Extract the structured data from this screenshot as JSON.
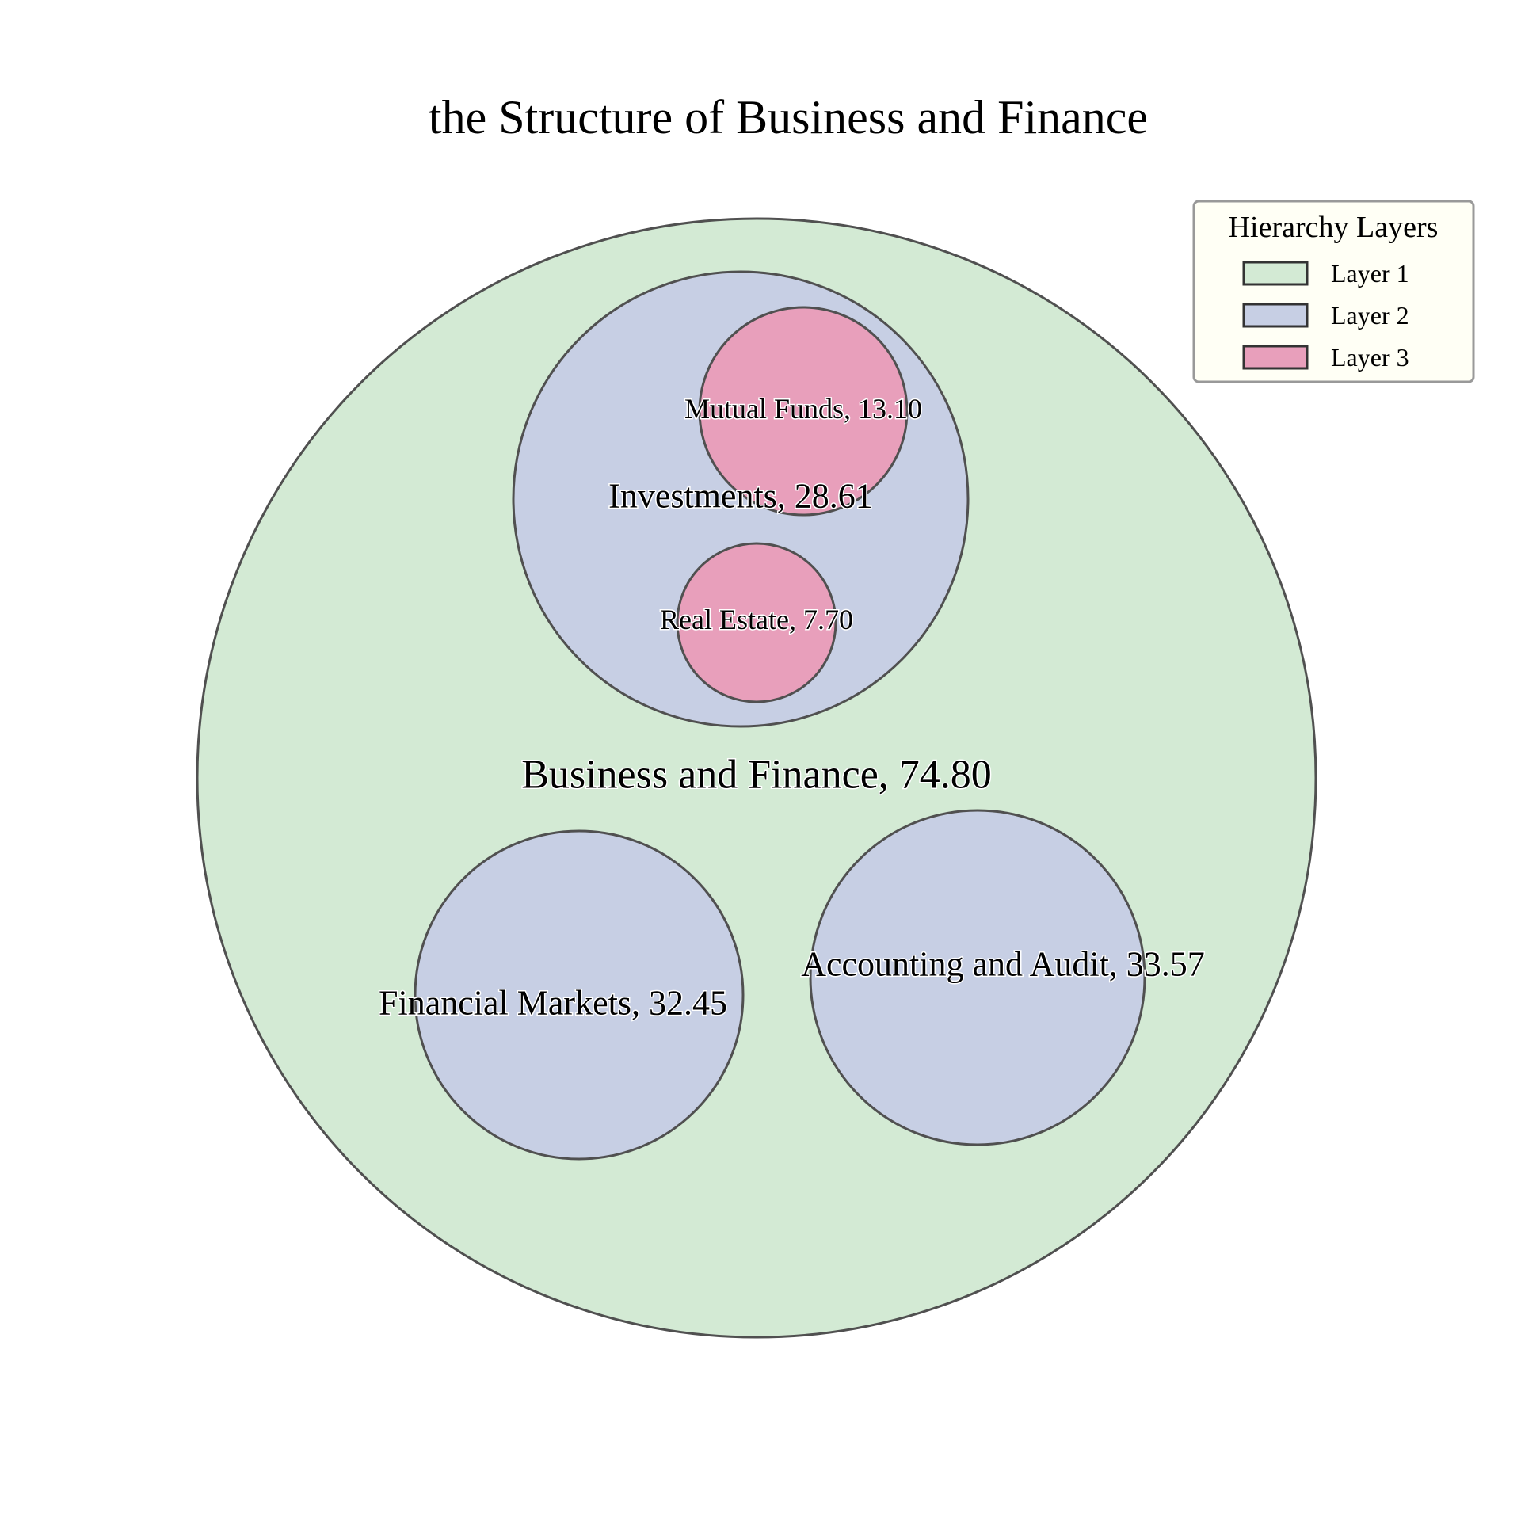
{
  "chart_data": {
    "type": "circle-packing",
    "title": "the Structure of Business and Finance",
    "nodes": [
      {
        "id": "root",
        "name": "Business and Finance",
        "value": 74.8,
        "label": "Business and Finance, 74.80",
        "layer": 1,
        "parent": null
      },
      {
        "id": "investments",
        "name": "Investments",
        "value": 28.61,
        "label": "Investments, 28.61",
        "layer": 2,
        "parent": "root"
      },
      {
        "id": "mutual-funds",
        "name": "Mutual Funds",
        "value": 13.1,
        "label": "Mutual Funds, 13.10",
        "layer": 3,
        "parent": "investments"
      },
      {
        "id": "real-estate",
        "name": "Real Estate",
        "value": 7.7,
        "label": "Real Estate, 7.70",
        "layer": 3,
        "parent": "investments"
      },
      {
        "id": "financial-markets",
        "name": "Financial Markets",
        "value": 32.45,
        "label": "Financial Markets, 32.45",
        "layer": 2,
        "parent": "root"
      },
      {
        "id": "accounting-audit",
        "name": "Accounting and Audit",
        "value": 33.57,
        "label": "Accounting and Audit, 33.57",
        "layer": 2,
        "parent": "root"
      }
    ],
    "legend": {
      "title": "Hierarchy Layers",
      "placement": "top-right",
      "items": [
        {
          "label": "Layer 1",
          "color": "#d3ead4"
        },
        {
          "label": "Layer 2",
          "color": "#c7cfe4"
        },
        {
          "label": "Layer 3",
          "color": "#e89fbb"
        }
      ]
    },
    "colors": {
      "outline": "#505050",
      "legend_background": "#fffff5",
      "legend_border": "#999999"
    }
  }
}
